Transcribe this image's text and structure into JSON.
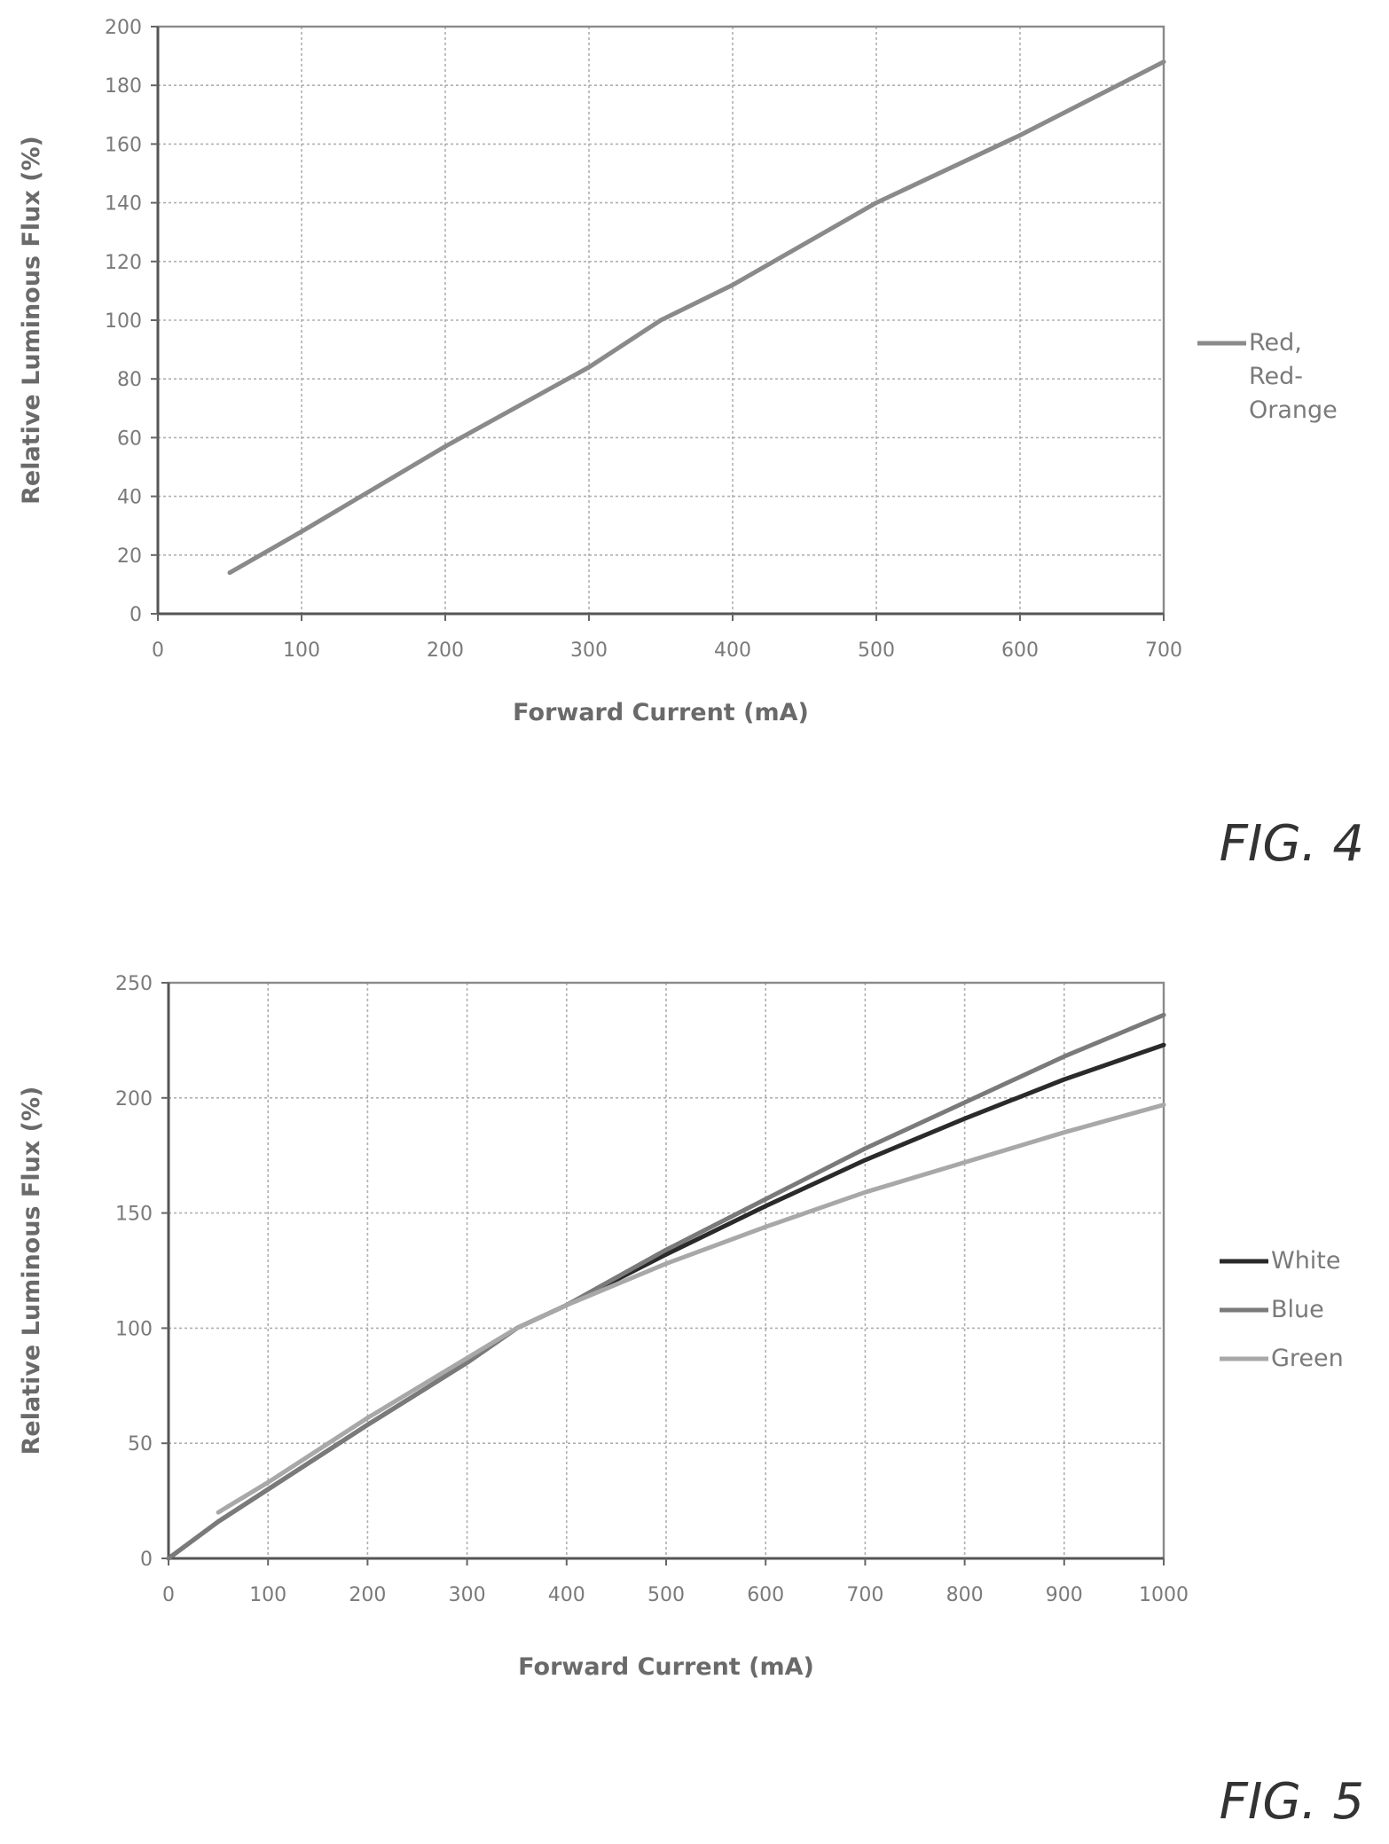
{
  "chart_data": [
    {
      "type": "line",
      "figure_label": "FIG. 4",
      "xlabel": "Forward Current (mA)",
      "ylabel": "Relative Luminous Flux (%)",
      "xlim": [
        0,
        700
      ],
      "ylim": [
        0,
        200
      ],
      "xticks": [
        0,
        100,
        200,
        300,
        400,
        500,
        600,
        700
      ],
      "yticks": [
        0,
        20,
        40,
        60,
        80,
        100,
        120,
        140,
        160,
        180,
        200
      ],
      "grid": true,
      "legend": "right",
      "series": [
        {
          "name": "Red, Red-Orange",
          "name_lines": [
            "Red,",
            "Red-",
            "Orange"
          ],
          "color": "#8a8a8a",
          "x": [
            50,
            100,
            200,
            300,
            350,
            400,
            500,
            600,
            700
          ],
          "y": [
            14,
            28,
            57,
            84,
            100,
            112,
            140,
            163,
            188
          ]
        }
      ]
    },
    {
      "type": "line",
      "figure_label": "FIG. 5",
      "xlabel": "Forward Current (mA)",
      "ylabel": "Relative Luminous Flux (%)",
      "xlim": [
        0,
        1000
      ],
      "ylim": [
        0,
        250
      ],
      "xticks": [
        0,
        100,
        200,
        300,
        400,
        500,
        600,
        700,
        800,
        900,
        1000
      ],
      "yticks": [
        0,
        50,
        100,
        150,
        200,
        250
      ],
      "grid": true,
      "legend": "right",
      "series": [
        {
          "name": "White",
          "color": "#2a2a2a",
          "x": [
            0,
            50,
            100,
            200,
            300,
            350,
            400,
            500,
            600,
            700,
            800,
            900,
            1000
          ],
          "y": [
            0,
            16,
            30,
            58,
            85,
            100,
            110,
            132,
            153,
            173,
            191,
            208,
            223
          ]
        },
        {
          "name": "Blue",
          "color": "#7a7a7a",
          "x": [
            0,
            50,
            100,
            200,
            300,
            350,
            400,
            500,
            600,
            700,
            800,
            900,
            1000
          ],
          "y": [
            0,
            16,
            30,
            58,
            85,
            100,
            110,
            134,
            156,
            178,
            198,
            218,
            236
          ]
        },
        {
          "name": "Green",
          "color": "#a8a8a8",
          "x": [
            50,
            100,
            200,
            300,
            350,
            400,
            500,
            600,
            700,
            800,
            900,
            1000
          ],
          "y": [
            20,
            33,
            61,
            87,
            100,
            110,
            128,
            144,
            159,
            172,
            185,
            197
          ]
        }
      ]
    }
  ]
}
